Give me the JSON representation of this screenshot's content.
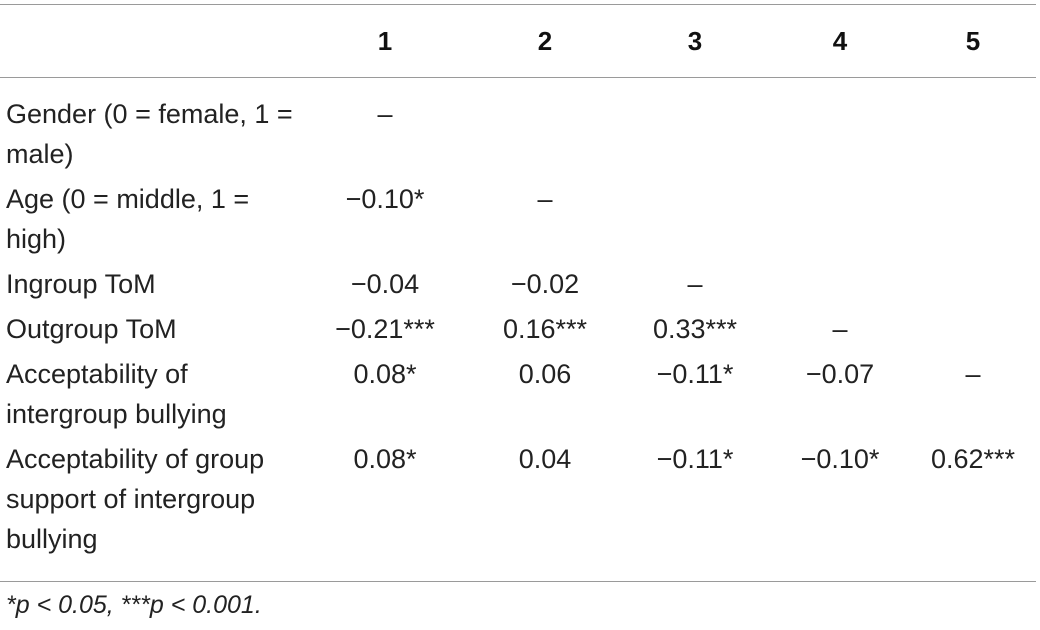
{
  "table": {
    "columns": [
      "",
      "1",
      "2",
      "3",
      "4",
      "5"
    ],
    "rows": [
      {
        "label": "Gender (0 = female, 1 = male)",
        "cells": [
          "–",
          "",
          "",
          "",
          ""
        ]
      },
      {
        "label": "Age (0 = middle, 1 = high)",
        "cells": [
          "−0.10*",
          "–",
          "",
          "",
          ""
        ]
      },
      {
        "label": "Ingroup ToM",
        "cells": [
          "−0.04",
          "−0.02",
          "–",
          "",
          ""
        ]
      },
      {
        "label": "Outgroup ToM",
        "cells": [
          "−0.21***",
          "0.16***",
          "0.33***",
          "–",
          ""
        ]
      },
      {
        "label": "Acceptability of intergroup bullying",
        "cells": [
          "0.08*",
          "0.06",
          "−0.11*",
          "−0.07",
          "–"
        ]
      },
      {
        "label": "Acceptability of group support of intergroup bullying",
        "cells": [
          "0.08*",
          "0.04",
          "−0.11*",
          "−0.10*",
          "0.62***"
        ]
      }
    ],
    "footnote": "*p < 0.05, ***p < 0.001."
  }
}
